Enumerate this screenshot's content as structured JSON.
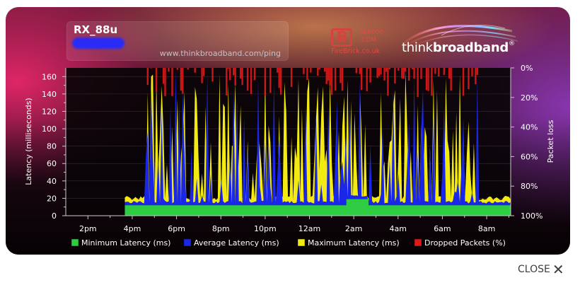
{
  "header": {
    "title": "RX_88u",
    "site_url": "www.thinkbroadband.com/ping"
  },
  "logos": {
    "firebrick_model": [
      "FB6000",
      ".COM"
    ],
    "firebrick_name": "FireBrick.co.uk",
    "tbb_think": "think",
    "tbb_broadband": "broadband",
    "tbb_reg": "®"
  },
  "close_label": "CLOSE",
  "colors": {
    "minimum": "#2ecc40",
    "average": "#1a26e8",
    "maximum": "#f2ea10",
    "dropped": "#e01818",
    "plot_background": "#080407"
  },
  "chart_data": {
    "type": "area",
    "y_axis_left": {
      "label": "Latency (milliseconds)",
      "ylim": [
        0,
        170
      ],
      "ticks": [
        "0",
        "20",
        "40",
        "60",
        "80",
        "100",
        "120",
        "140",
        "160"
      ]
    },
    "y_axis_right": {
      "label": "Packet loss",
      "ylim": [
        100,
        0
      ],
      "ticks": [
        "0%",
        "20%",
        "40%",
        "60%",
        "80%",
        "100%"
      ]
    },
    "x_axis": {
      "label": "",
      "ticks": [
        "2pm",
        "4pm",
        "6pm",
        "8pm",
        "10pm",
        "12am",
        "2am",
        "4am",
        "6am",
        "8am"
      ],
      "start_time": "1:00 pm",
      "end_time": "9:05 am"
    },
    "data_start_time": "3:40 pm",
    "grid": true,
    "legend_position": "bottom",
    "series": [
      {
        "name": "Minimum Latency (ms)",
        "key": "minimum"
      },
      {
        "name": "Average Latency (ms)",
        "key": "average"
      },
      {
        "name": "Maximum Latency (ms)",
        "key": "maximum"
      },
      {
        "name": "Dropped Packets (%)",
        "key": "dropped"
      }
    ],
    "minimum_latency": {
      "times": [
        "3:40 pm",
        "1:40 am",
        "1:40 am",
        "2:40 am",
        "2:40 am",
        "9:05 am"
      ],
      "values": [
        12,
        12,
        19,
        19,
        12,
        12
      ]
    },
    "max_latency_baseline": 18,
    "max_latency_spike_peak": 170,
    "average_latency_spike_peak": 170,
    "dropped_packets_max_pct": 20
  }
}
